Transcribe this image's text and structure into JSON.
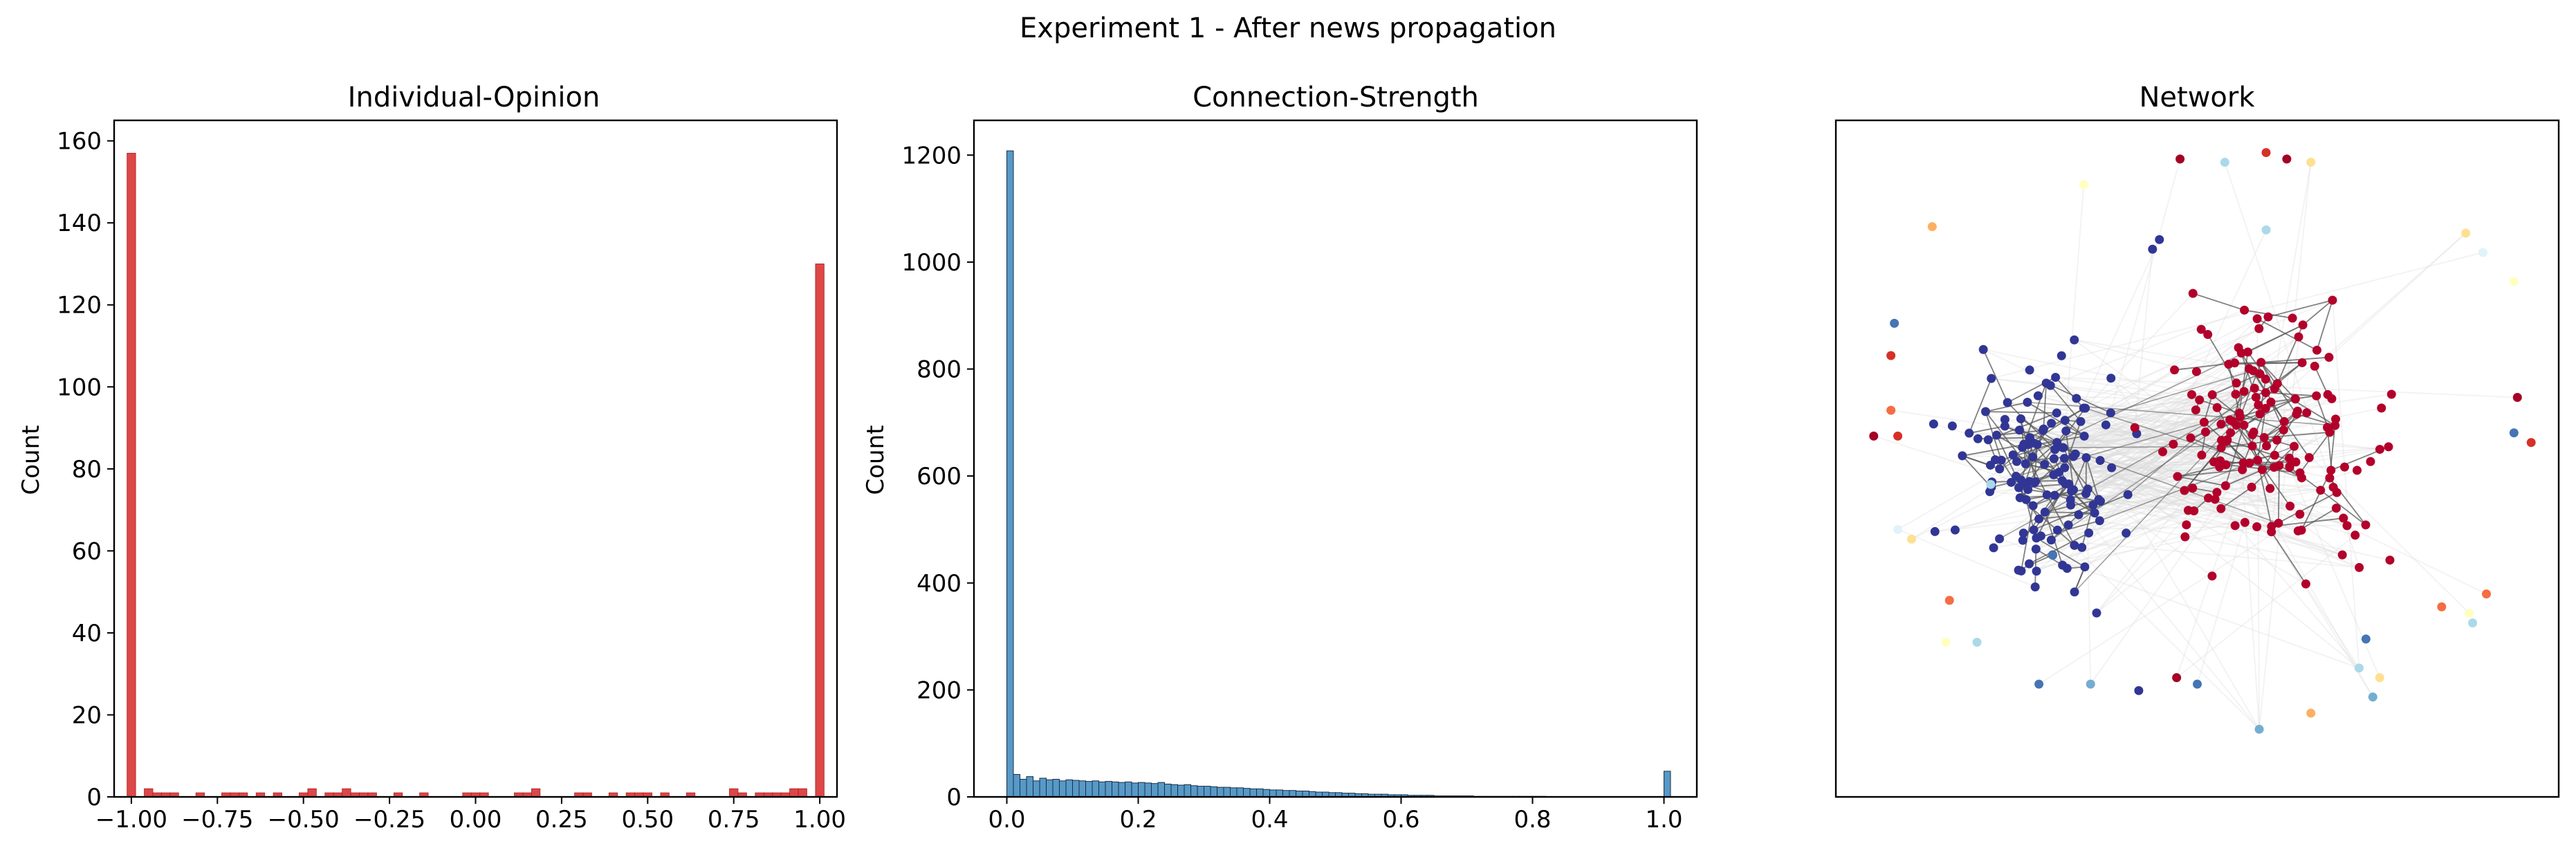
{
  "figure": {
    "suptitle": "Experiment 1 - After news propagation"
  },
  "chart_data": [
    {
      "type": "bar",
      "title": "Individual-Opinion",
      "xlabel": "",
      "ylabel": "Count",
      "xlim": [
        -1.05,
        1.05
      ],
      "ylim": [
        0,
        165
      ],
      "bar_color": "#d62728",
      "xticks": [
        "−1.00",
        "−0.75",
        "−0.50",
        "−0.25",
        "0.00",
        "0.25",
        "0.50",
        "0.75",
        "1.00"
      ],
      "xtick_values": [
        -1.0,
        -0.75,
        -0.5,
        -0.25,
        0.0,
        0.25,
        0.5,
        0.75,
        1.0
      ],
      "yticks": [
        "0",
        "20",
        "40",
        "60",
        "80",
        "100",
        "120",
        "140",
        "160"
      ],
      "ytick_values": [
        0,
        20,
        40,
        60,
        80,
        100,
        120,
        140,
        160
      ],
      "bin_width": 0.025,
      "bins": [
        {
          "x": -1.0,
          "count": 157
        },
        {
          "x": -0.95,
          "count": 2
        },
        {
          "x": -0.925,
          "count": 1
        },
        {
          "x": -0.9,
          "count": 1
        },
        {
          "x": -0.875,
          "count": 1
        },
        {
          "x": -0.8,
          "count": 1
        },
        {
          "x": -0.725,
          "count": 1
        },
        {
          "x": -0.7,
          "count": 1
        },
        {
          "x": -0.675,
          "count": 1
        },
        {
          "x": -0.625,
          "count": 1
        },
        {
          "x": -0.575,
          "count": 1
        },
        {
          "x": -0.5,
          "count": 1
        },
        {
          "x": -0.475,
          "count": 2
        },
        {
          "x": -0.425,
          "count": 1
        },
        {
          "x": -0.4,
          "count": 1
        },
        {
          "x": -0.375,
          "count": 2
        },
        {
          "x": -0.35,
          "count": 1
        },
        {
          "x": -0.325,
          "count": 1
        },
        {
          "x": -0.3,
          "count": 1
        },
        {
          "x": -0.225,
          "count": 1
        },
        {
          "x": -0.15,
          "count": 1
        },
        {
          "x": -0.025,
          "count": 1
        },
        {
          "x": 0.0,
          "count": 1
        },
        {
          "x": 0.025,
          "count": 1
        },
        {
          "x": 0.125,
          "count": 1
        },
        {
          "x": 0.15,
          "count": 1
        },
        {
          "x": 0.175,
          "count": 2
        },
        {
          "x": 0.3,
          "count": 1
        },
        {
          "x": 0.325,
          "count": 1
        },
        {
          "x": 0.4,
          "count": 1
        },
        {
          "x": 0.45,
          "count": 1
        },
        {
          "x": 0.475,
          "count": 1
        },
        {
          "x": 0.5,
          "count": 1
        },
        {
          "x": 0.55,
          "count": 1
        },
        {
          "x": 0.625,
          "count": 1
        },
        {
          "x": 0.75,
          "count": 2
        },
        {
          "x": 0.775,
          "count": 1
        },
        {
          "x": 0.825,
          "count": 1
        },
        {
          "x": 0.85,
          "count": 1
        },
        {
          "x": 0.875,
          "count": 1
        },
        {
          "x": 0.9,
          "count": 1
        },
        {
          "x": 0.925,
          "count": 2
        },
        {
          "x": 0.95,
          "count": 2
        },
        {
          "x": 1.0,
          "count": 130
        }
      ]
    },
    {
      "type": "bar",
      "title": "Connection-Strength",
      "xlabel": "",
      "ylabel": "Count",
      "xlim": [
        -0.05,
        1.05
      ],
      "ylim": [
        0,
        1265
      ],
      "bar_color": "#1f77b4",
      "xticks": [
        "0.0",
        "0.2",
        "0.4",
        "0.6",
        "0.8",
        "1.0"
      ],
      "xtick_values": [
        0.0,
        0.2,
        0.4,
        0.6,
        0.8,
        1.0
      ],
      "yticks": [
        "0",
        "200",
        "400",
        "600",
        "800",
        "1000",
        "1200"
      ],
      "ytick_values": [
        0,
        200,
        400,
        600,
        800,
        1000,
        1200
      ],
      "bin_width": 0.01,
      "bins_start": 0.0,
      "counts": [
        1208,
        42,
        33,
        38,
        30,
        35,
        32,
        33,
        30,
        32,
        31,
        30,
        29,
        30,
        28,
        29,
        28,
        27,
        28,
        26,
        27,
        26,
        25,
        27,
        24,
        23,
        22,
        23,
        21,
        20,
        20,
        19,
        18,
        18,
        17,
        17,
        16,
        15,
        15,
        14,
        13,
        13,
        12,
        12,
        11,
        11,
        10,
        9,
        9,
        8,
        8,
        7,
        7,
        6,
        6,
        5,
        5,
        5,
        4,
        4,
        4,
        3,
        3,
        3,
        3,
        2,
        2,
        2,
        2,
        2,
        2,
        1,
        1,
        1,
        1,
        1,
        1,
        1,
        1,
        1,
        1,
        1,
        0,
        0,
        0,
        0,
        0,
        0,
        0,
        0,
        0,
        0,
        0,
        0,
        0,
        0,
        0,
        0,
        0,
        0,
        48
      ]
    },
    {
      "type": "scatter",
      "title": "Network",
      "colors": {
        "red_cluster": "#b2002b",
        "blue_cluster": "#313695",
        "edge": "#555555",
        "faint_edge": "#dddddd"
      },
      "clusters": [
        {
          "name": "blue",
          "center": [
            -0.45,
            -0.05
          ],
          "spread": [
            0.12,
            0.17
          ],
          "count": 130,
          "color": "#313695"
        },
        {
          "name": "red",
          "center": [
            0.22,
            0.05
          ],
          "spread": [
            0.16,
            0.18
          ],
          "count": 150,
          "color": "#b2002b"
        }
      ],
      "isolated_nodes": [
        {
          "x": -0.05,
          "y": 0.93,
          "color": "#a50026"
        },
        {
          "x": 0.08,
          "y": 0.92,
          "color": "#abd9e9"
        },
        {
          "x": 0.2,
          "y": 0.95,
          "color": "#d73027"
        },
        {
          "x": 0.26,
          "y": 0.93,
          "color": "#a50026"
        },
        {
          "x": 0.33,
          "y": 0.92,
          "color": "#fee090"
        },
        {
          "x": -0.33,
          "y": 0.85,
          "color": "#ffffbf"
        },
        {
          "x": -0.77,
          "y": 0.72,
          "color": "#fdae61"
        },
        {
          "x": -0.11,
          "y": 0.68,
          "color": "#313695"
        },
        {
          "x": -0.13,
          "y": 0.65,
          "color": "#313695"
        },
        {
          "x": 0.2,
          "y": 0.71,
          "color": "#abd9e9"
        },
        {
          "x": 0.78,
          "y": 0.7,
          "color": "#fee090"
        },
        {
          "x": 0.83,
          "y": 0.64,
          "color": "#e0f3f8"
        },
        {
          "x": 0.92,
          "y": 0.55,
          "color": "#ffffbf"
        },
        {
          "x": -0.88,
          "y": 0.42,
          "color": "#4575b4"
        },
        {
          "x": -0.89,
          "y": 0.32,
          "color": "#d73027"
        },
        {
          "x": 0.93,
          "y": 0.19,
          "color": "#a50026"
        },
        {
          "x": -0.89,
          "y": 0.15,
          "color": "#f46d43"
        },
        {
          "x": 0.92,
          "y": 0.08,
          "color": "#4575b4"
        },
        {
          "x": -0.94,
          "y": 0.07,
          "color": "#a50026"
        },
        {
          "x": -0.87,
          "y": 0.07,
          "color": "#d73027"
        },
        {
          "x": 0.97,
          "y": 0.05,
          "color": "#d73027"
        },
        {
          "x": -0.6,
          "y": -0.08,
          "color": "#abd9e9"
        },
        {
          "x": -0.87,
          "y": -0.22,
          "color": "#e0f3f8"
        },
        {
          "x": -0.83,
          "y": -0.25,
          "color": "#fee090"
        },
        {
          "x": -0.42,
          "y": -0.3,
          "color": "#4575b4"
        },
        {
          "x": -0.72,
          "y": -0.44,
          "color": "#f46d43"
        },
        {
          "x": 0.84,
          "y": -0.42,
          "color": "#f46d43"
        },
        {
          "x": 0.71,
          "y": -0.46,
          "color": "#f46d43"
        },
        {
          "x": 0.79,
          "y": -0.48,
          "color": "#ffffbf"
        },
        {
          "x": -0.64,
          "y": -0.57,
          "color": "#abd9e9"
        },
        {
          "x": -0.73,
          "y": -0.57,
          "color": "#ffffbf"
        },
        {
          "x": 0.8,
          "y": -0.51,
          "color": "#abd9e9"
        },
        {
          "x": 0.49,
          "y": -0.56,
          "color": "#4575b4"
        },
        {
          "x": -0.46,
          "y": -0.7,
          "color": "#4575b4"
        },
        {
          "x": -0.31,
          "y": -0.7,
          "color": "#74add1"
        },
        {
          "x": -0.17,
          "y": -0.72,
          "color": "#313695"
        },
        {
          "x": -0.06,
          "y": -0.68,
          "color": "#a50026"
        },
        {
          "x": 0.47,
          "y": -0.65,
          "color": "#abd9e9"
        },
        {
          "x": 0.53,
          "y": -0.68,
          "color": "#fee090"
        },
        {
          "x": 0.51,
          "y": -0.74,
          "color": "#74add1"
        },
        {
          "x": 0.0,
          "y": -0.7,
          "color": "#4575b4"
        },
        {
          "x": 0.18,
          "y": -0.84,
          "color": "#74add1"
        },
        {
          "x": 0.33,
          "y": -0.79,
          "color": "#fdae61"
        }
      ]
    }
  ]
}
